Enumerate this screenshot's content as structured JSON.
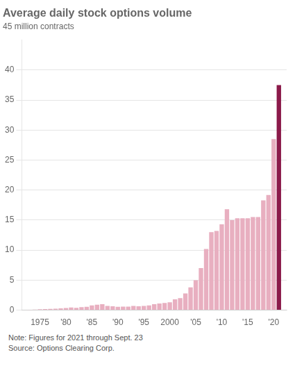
{
  "chart_data": {
    "type": "bar",
    "title": "Average daily stock options volume",
    "subtitle": "45 million contracts",
    "annotations": [
      "Note: Figures for 2021 through Sept. 23",
      "Source: Options Clearing Corp."
    ],
    "x": [
      1973,
      1974,
      1975,
      1976,
      1977,
      1978,
      1979,
      1980,
      1981,
      1982,
      1983,
      1984,
      1985,
      1986,
      1987,
      1988,
      1989,
      1990,
      1991,
      1992,
      1993,
      1994,
      1995,
      1996,
      1997,
      1998,
      1999,
      2000,
      2001,
      2002,
      2003,
      2004,
      2005,
      2006,
      2007,
      2008,
      2009,
      2010,
      2011,
      2012,
      2013,
      2014,
      2015,
      2016,
      2017,
      2018,
      2019,
      2020,
      2021
    ],
    "values": [
      0.05,
      0.1,
      0.15,
      0.18,
      0.2,
      0.25,
      0.3,
      0.35,
      0.45,
      0.4,
      0.5,
      0.55,
      0.8,
      0.9,
      1.0,
      0.7,
      0.65,
      0.55,
      0.6,
      0.6,
      0.7,
      0.65,
      0.7,
      0.8,
      1.0,
      1.1,
      1.2,
      1.3,
      1.8,
      2.0,
      2.8,
      3.8,
      5.0,
      7.0,
      10.2,
      13.0,
      13.2,
      14.3,
      16.8,
      15.0,
      15.3,
      15.3,
      15.3,
      15.5,
      15.5,
      18.3,
      19.2,
      28.5,
      37.5
    ],
    "colors": [
      "#e8afc0",
      "#e8afc0",
      "#e8afc0",
      "#e8afc0",
      "#e8afc0",
      "#e8afc0",
      "#e8afc0",
      "#e8afc0",
      "#e8afc0",
      "#e8afc0",
      "#e8afc0",
      "#e8afc0",
      "#e8afc0",
      "#e8afc0",
      "#e8afc0",
      "#e8afc0",
      "#e8afc0",
      "#e8afc0",
      "#e8afc0",
      "#e8afc0",
      "#e8afc0",
      "#e8afc0",
      "#e8afc0",
      "#e8afc0",
      "#e8afc0",
      "#e8afc0",
      "#e8afc0",
      "#e8afc0",
      "#e8afc0",
      "#e8afc0",
      "#e8afc0",
      "#e8afc0",
      "#e8afc0",
      "#e8afc0",
      "#e8afc0",
      "#e8afc0",
      "#e8afc0",
      "#e8afc0",
      "#e8afc0",
      "#e8afc0",
      "#e8afc0",
      "#e8afc0",
      "#e8afc0",
      "#e8afc0",
      "#e8afc0",
      "#e8afc0",
      "#e8afc0",
      "#e8afc0",
      "#8b1a4a"
    ],
    "xlim": [
      1971.5,
      2022.5
    ],
    "xticks": [
      1975,
      {
        "value": 1980,
        "label": "'80"
      },
      {
        "value": 1985,
        "label": "'85"
      },
      {
        "value": 1990,
        "label": "'90"
      },
      {
        "value": 1995,
        "label": "'95"
      },
      2000,
      {
        "value": 2005,
        "label": "'05"
      },
      {
        "value": 2010,
        "label": "'10"
      },
      {
        "value": 2015,
        "label": "'15"
      },
      {
        "value": 2020,
        "label": "'20"
      }
    ],
    "ylim": [
      0,
      45
    ],
    "yticks": [
      0,
      5,
      10,
      15,
      20,
      25,
      30,
      35,
      40
    ],
    "grid": true
  }
}
